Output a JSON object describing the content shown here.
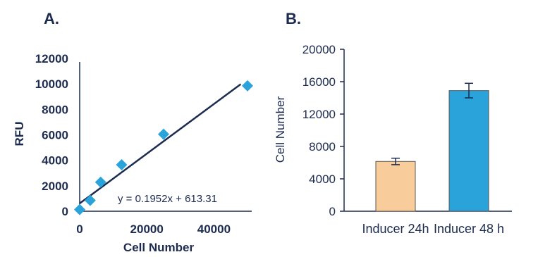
{
  "chart_data": [
    {
      "panel": "A.",
      "type": "scatter",
      "xlabel": "Cell Number",
      "ylabel": "RFU",
      "xlim": [
        0,
        50000
      ],
      "ylim": [
        0,
        12000
      ],
      "x_ticks": [
        "0",
        "20000",
        "40000"
      ],
      "y_ticks": [
        "0",
        "2000",
        "4000",
        "6000",
        "8000",
        "10000",
        "12000"
      ],
      "points": [
        {
          "x": 0,
          "y": 130
        },
        {
          "x": 3125,
          "y": 850
        },
        {
          "x": 6250,
          "y": 2280
        },
        {
          "x": 12500,
          "y": 3650
        },
        {
          "x": 25000,
          "y": 6050
        },
        {
          "x": 50000,
          "y": 9850
        }
      ],
      "trendline": {
        "slope": 0.1952,
        "intercept": 613.31,
        "x_range": [
          0,
          48000
        ]
      },
      "equation": "y = 0.1952x + 613.31",
      "marker_color": "#2aa3db"
    },
    {
      "panel": "B.",
      "type": "bar",
      "ylabel": "Cell Number",
      "ylim": [
        0,
        20000
      ],
      "y_ticks": [
        "0",
        "4000",
        "8000",
        "12000",
        "16000",
        "20000"
      ],
      "categories": [
        "Inducer 24h",
        "Inducer 48 h"
      ],
      "values": [
        6150,
        14900
      ],
      "errors": [
        400,
        900
      ],
      "colors": [
        "#f9cd9b",
        "#2aa3db"
      ]
    }
  ]
}
